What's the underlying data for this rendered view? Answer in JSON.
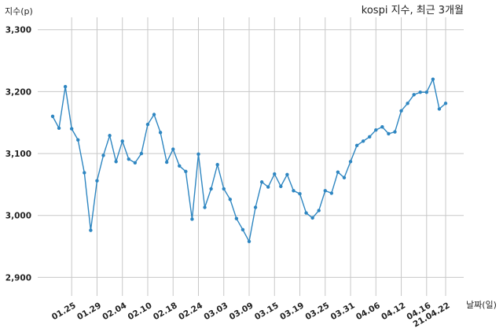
{
  "chart_data": {
    "type": "line",
    "title": "kospi 지수, 최근 3개월",
    "ylabel": "지수(p)",
    "xlabel": "날짜(일)",
    "ylim": [
      2870,
      3320
    ],
    "yticks": [
      2900,
      3000,
      3100,
      3200,
      3300
    ],
    "ytick_labels": [
      "2,900",
      "3,000",
      "3,100",
      "3,200",
      "3,300"
    ],
    "grid": true,
    "color": "#2e86c1",
    "xtick_labels": [
      "01.25",
      "01.29",
      "02.04",
      "02.10",
      "02.18",
      "02.24",
      "03.03",
      "03.09",
      "03.15",
      "03.19",
      "03.25",
      "03.31",
      "04.06",
      "04.12",
      "04.16",
      "21.04.22"
    ],
    "xtick_positions": [
      3,
      7,
      11,
      15,
      19,
      23,
      27,
      31,
      35,
      39,
      43,
      47,
      51,
      55,
      59,
      62
    ],
    "x": [
      0,
      1,
      2,
      3,
      4,
      5,
      6,
      7,
      8,
      9,
      10,
      11,
      12,
      13,
      14,
      15,
      16,
      17,
      18,
      19,
      20,
      21,
      22,
      23,
      24,
      25,
      26,
      27,
      28,
      29,
      30,
      31,
      32,
      33,
      34,
      35,
      36,
      37,
      38,
      39,
      40,
      41,
      42,
      43,
      44,
      45,
      46,
      47,
      48,
      49,
      50,
      51,
      52,
      53,
      54,
      55,
      56,
      57,
      58,
      59,
      60,
      61,
      62
    ],
    "values": [
      3160,
      3141,
      3208,
      3140,
      3122,
      3069,
      2976,
      3056,
      3097,
      3129,
      3087,
      3120,
      3091,
      3085,
      3100,
      3147,
      3163,
      3134,
      3086,
      3107,
      3080,
      3071,
      2994,
      3099,
      3013,
      3043,
      3082,
      3043,
      3026,
      2995,
      2977,
      2958,
      3013,
      3054,
      3046,
      3067,
      3047,
      3066,
      3040,
      3035,
      3004,
      2996,
      3008,
      3040,
      3036,
      3070,
      3061,
      3087,
      3113,
      3120,
      3127,
      3138,
      3143,
      3132,
      3135,
      3169,
      3181,
      3195,
      3199,
      3199,
      3220,
      3172,
      3181
    ]
  }
}
